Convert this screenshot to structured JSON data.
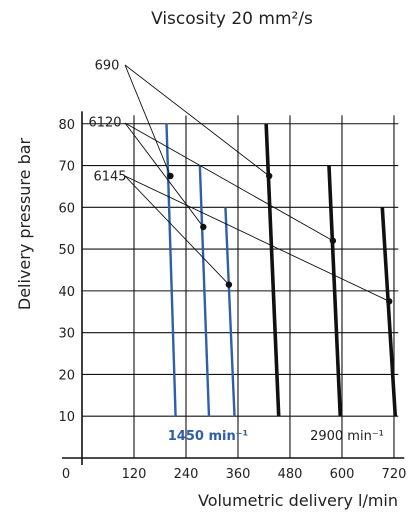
{
  "chart_data": {
    "type": "line",
    "title": "Viscosity 20 mm²/s",
    "xlabel": "Volumetric delivery l/min",
    "ylabel": "Delivery pressure bar",
    "xlim": [
      0,
      730
    ],
    "ylim": [
      0,
      82
    ],
    "x_ticks": [
      "0",
      "120",
      "240",
      "360",
      "480",
      "600",
      "720"
    ],
    "y_ticks": [
      "10",
      "20",
      "30",
      "40",
      "50",
      "60",
      "70",
      "80"
    ],
    "x_grid": [
      120,
      240,
      360,
      480,
      600,
      720
    ],
    "y_grid": [
      10,
      20,
      30,
      40,
      50,
      60,
      70,
      80
    ],
    "grid": true,
    "speed_labels": [
      {
        "text": "1450 min⁻¹",
        "color": "#2e5fa8"
      },
      {
        "text": "2900 min⁻¹",
        "color": "#111111"
      }
    ],
    "series": [
      {
        "name": "690",
        "speed": "1450",
        "color": "#2e5fa8",
        "x": [
          195,
          216
        ],
        "y": [
          80,
          10
        ]
      },
      {
        "name": "6120",
        "speed": "1450",
        "color": "#2e5fa8",
        "x": [
          272,
          293
        ],
        "y": [
          70,
          10
        ]
      },
      {
        "name": "6145",
        "speed": "1450",
        "color": "#2e5fa8",
        "x": [
          331,
          352
        ],
        "y": [
          60,
          10
        ]
      },
      {
        "name": "690",
        "speed": "2900",
        "color": "#111111",
        "x": [
          425,
          454
        ],
        "y": [
          80,
          10
        ]
      },
      {
        "name": "6120",
        "speed": "2900",
        "color": "#111111",
        "x": [
          570,
          596
        ],
        "y": [
          70,
          10
        ]
      },
      {
        "name": "6145",
        "speed": "2900",
        "color": "#111111",
        "x": [
          693,
          723
        ],
        "y": [
          60,
          10
        ]
      }
    ],
    "model_labels": [
      {
        "text": "690",
        "points": [
          [
            204,
            67.5
          ],
          [
            432,
            67.5
          ]
        ]
      },
      {
        "text": "6120",
        "points": [
          [
            280,
            55.3
          ],
          [
            579,
            52
          ]
        ]
      },
      {
        "text": "6145",
        "points": [
          [
            339,
            41.5
          ],
          [
            709,
            37.5
          ]
        ]
      }
    ]
  }
}
